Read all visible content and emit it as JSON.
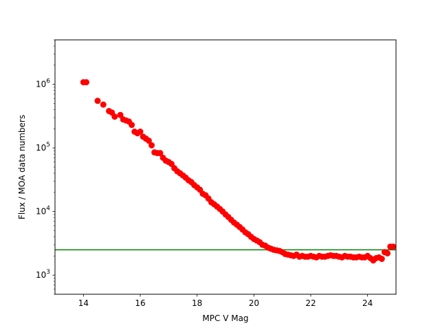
{
  "chart_data": {
    "type": "scatter",
    "title": "",
    "xlabel": "MPC V Mag",
    "ylabel": "Flux / MOA data numbers",
    "xlim": [
      13.0,
      25.0
    ],
    "ylim": [
      500,
      5000000
    ],
    "yscale": "log",
    "grid": false,
    "x_ticks": [
      14,
      16,
      18,
      20,
      22,
      24
    ],
    "x_tick_labels": [
      "14",
      "16",
      "18",
      "20",
      "22",
      "24"
    ],
    "y_ticks": [
      1000,
      10000,
      100000,
      1000000
    ],
    "y_tick_labels": [
      {
        "base": "10",
        "exp": "3"
      },
      {
        "base": "10",
        "exp": "4"
      },
      {
        "base": "10",
        "exp": "5"
      },
      {
        "base": "10",
        "exp": "6"
      }
    ],
    "point_color": "#ff0000",
    "threshold": {
      "y": 2500,
      "color": "#008000"
    },
    "series": [
      {
        "x": [
          14.0,
          14.1,
          14.5,
          14.7,
          14.9,
          15.0,
          15.1,
          15.3,
          15.4,
          15.5,
          15.6,
          15.7,
          15.8,
          15.9,
          16.0,
          16.1,
          16.2,
          16.3,
          16.4,
          16.5,
          16.6,
          16.7,
          16.8,
          16.9,
          17.0,
          17.1,
          17.2,
          17.3,
          17.4,
          17.5,
          17.6,
          17.7,
          17.8,
          17.9,
          18.0,
          18.1,
          18.2,
          18.3,
          18.4,
          18.5,
          18.6,
          18.7,
          18.8,
          18.9,
          19.0,
          19.1,
          19.2,
          19.3,
          19.4,
          19.5,
          19.6,
          19.7,
          19.8,
          19.9,
          20.0,
          20.1,
          20.2,
          20.3,
          20.4,
          20.5,
          20.6,
          20.7,
          20.8,
          20.9,
          21.0,
          21.1,
          21.2,
          21.3,
          21.4,
          21.5,
          21.6,
          21.7,
          21.8,
          21.9,
          22.0,
          22.1,
          22.2,
          22.3,
          22.4,
          22.5,
          22.6,
          22.7,
          22.8,
          22.9,
          23.0,
          23.1,
          23.2,
          23.3,
          23.4,
          23.5,
          23.6,
          23.7,
          23.8,
          23.9,
          24.0,
          24.1,
          24.2,
          24.3,
          24.4,
          24.5,
          24.6,
          24.7,
          24.8,
          24.9
        ],
        "y": [
          1080000,
          1080000,
          550000,
          480000,
          380000,
          360000,
          310000,
          330000,
          280000,
          270000,
          260000,
          230000,
          180000,
          170000,
          180000,
          150000,
          140000,
          130000,
          110000,
          85000,
          83000,
          83000,
          70000,
          63000,
          60000,
          56000,
          48000,
          43000,
          40000,
          37000,
          34000,
          31000,
          29000,
          26000,
          24000,
          22000,
          19000,
          18000,
          16000,
          14000,
          13000,
          12000,
          11000,
          10000,
          9000,
          8200,
          7400,
          6700,
          6200,
          5700,
          5200,
          4700,
          4400,
          4000,
          3700,
          3500,
          3300,
          3000,
          2900,
          2700,
          2600,
          2500,
          2450,
          2400,
          2300,
          2150,
          2100,
          2050,
          2000,
          2100,
          1950,
          2000,
          1950,
          1950,
          2000,
          1950,
          1900,
          2000,
          1950,
          1950,
          2000,
          2050,
          2000,
          2000,
          1950,
          1900,
          2000,
          1950,
          1950,
          1900,
          1900,
          1950,
          1900,
          1900,
          2000,
          1850,
          1700,
          1850,
          1900,
          1800,
          2300,
          2200,
          2800,
          2800
        ]
      }
    ]
  }
}
